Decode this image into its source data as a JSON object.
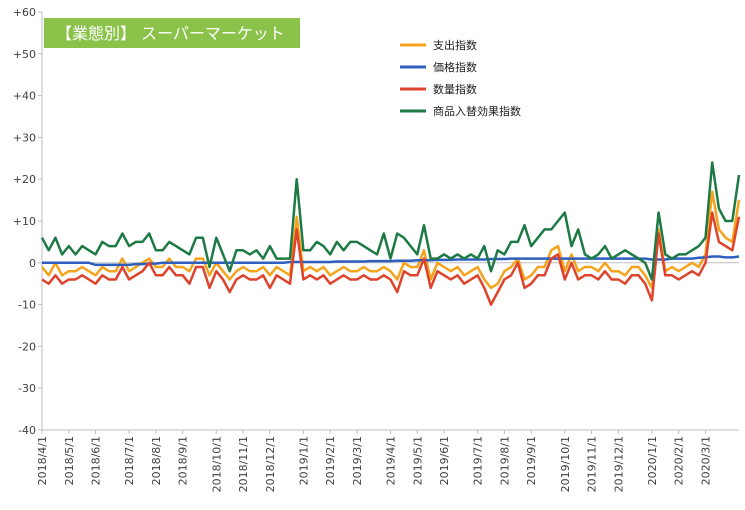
{
  "chart_data": {
    "type": "line",
    "title": "【業態別】 スーパーマーケット",
    "title_bg": "#8bc34a",
    "xlabel": "",
    "ylabel": "",
    "ylim": [
      -40,
      60
    ],
    "yticks": [
      -40,
      -30,
      -20,
      -10,
      0,
      10,
      20,
      30,
      40,
      50,
      60
    ],
    "ytick_labels": [
      "-40",
      "-30",
      "-20",
      "-10",
      "0",
      "+10",
      "+20",
      "+30",
      "+40",
      "+50",
      "+60"
    ],
    "grid": false,
    "legend_position": "top-right",
    "x_tick_labels": [
      "2018/4/1",
      "2018/5/1",
      "2018/6/1",
      "2018/7/1",
      "2018/8/1",
      "2018/9/1",
      "2018/10/1",
      "2018/11/1",
      "2018/12/1",
      "2019/1/1",
      "2019/2/1",
      "2019/3/1",
      "2019/4/1",
      "2019/5/1",
      "2019/6/1",
      "2019/7/1",
      "2019/8/1",
      "2019/9/1",
      "2019/10/1",
      "2019/11/1",
      "2019/12/1",
      "2020/1/1",
      "2020/2/1",
      "2020/3/1"
    ],
    "x_tick_weeks": [
      0,
      4,
      8,
      13,
      17,
      21,
      26,
      30,
      34,
      39,
      43,
      47,
      52,
      56,
      60,
      65,
      69,
      73,
      78,
      82,
      86,
      91,
      95,
      99
    ],
    "x_weeks": 104,
    "series": [
      {
        "name": "支出指数",
        "color": "#f5a31a",
        "values": [
          -1,
          -3,
          0,
          -3,
          -2,
          -2,
          -1,
          -2,
          -3,
          -1,
          -2,
          -2,
          1,
          -2,
          -1,
          0,
          1,
          -1,
          -1,
          1,
          -1,
          -1,
          -2,
          1,
          1,
          -3,
          0,
          -2,
          -4,
          -2,
          -1,
          -2,
          -2,
          -1,
          -3,
          -1,
          -2,
          -3,
          11,
          -2,
          -1,
          -2,
          -1,
          -3,
          -2,
          -1,
          -2,
          -2,
          -1,
          -2,
          -2,
          -1,
          -2,
          -4,
          0,
          -1,
          -1,
          3,
          -4,
          0,
          -1,
          -2,
          -1,
          -3,
          -2,
          -1,
          -4,
          -6,
          -5,
          -2,
          -1,
          1,
          -4,
          -3,
          -1,
          -1,
          3,
          4,
          -2,
          2,
          -2,
          -1,
          -1,
          -2,
          0,
          -2,
          -2,
          -3,
          -1,
          -1,
          -3,
          -6,
          8,
          -2,
          -1,
          -2,
          -1,
          0,
          -1,
          2,
          17,
          8,
          6,
          5,
          15
        ]
      },
      {
        "name": "価格指数",
        "color": "#2e5fbf",
        "values": [
          0,
          0,
          0,
          0,
          0,
          0,
          0,
          0,
          -0.5,
          -0.5,
          -0.5,
          -0.5,
          -0.5,
          -0.5,
          -0.3,
          -0.3,
          -0.2,
          -0.2,
          0,
          0,
          0,
          0,
          0,
          0,
          0,
          0,
          0,
          0,
          0,
          0,
          0,
          0,
          0,
          0,
          0,
          0,
          0,
          0.2,
          0.2,
          0.2,
          0.2,
          0.2,
          0.2,
          0.2,
          0.3,
          0.3,
          0.3,
          0.3,
          0.3,
          0.4,
          0.4,
          0.4,
          0.4,
          0.5,
          0.5,
          0.5,
          0.6,
          0.6,
          0.6,
          0.7,
          0.7,
          0.7,
          0.8,
          0.8,
          0.8,
          0.8,
          0.8,
          0.9,
          0.9,
          0.9,
          1.0,
          1.0,
          1.0,
          1.0,
          1.0,
          1.0,
          1.0,
          1.0,
          1.0,
          1.0,
          1.0,
          1.0,
          1.0,
          1.0,
          1.0,
          1.0,
          1.0,
          1.0,
          1.0,
          1.0,
          1.0,
          0.8,
          0.8,
          0.8,
          1.0,
          1.0,
          1.0,
          1.0,
          1.2,
          1.3,
          1.5,
          1.5,
          1.3,
          1.3,
          1.5
        ]
      },
      {
        "name": "数量指数",
        "color": "#e0432b",
        "values": [
          -4,
          -5,
          -3,
          -5,
          -4,
          -4,
          -3,
          -4,
          -5,
          -3,
          -4,
          -4,
          -1,
          -4,
          -3,
          -2,
          0,
          -3,
          -3,
          -1,
          -3,
          -3,
          -5,
          -1,
          -1,
          -6,
          -2,
          -4,
          -7,
          -4,
          -3,
          -4,
          -4,
          -3,
          -6,
          -3,
          -4,
          -5,
          8,
          -4,
          -3,
          -4,
          -3,
          -5,
          -4,
          -3,
          -4,
          -4,
          -3,
          -4,
          -4,
          -3,
          -4,
          -7,
          -2,
          -3,
          -3,
          1,
          -6,
          -2,
          -3,
          -4,
          -3,
          -5,
          -4,
          -3,
          -6,
          -10,
          -7,
          -4,
          -3,
          0,
          -6,
          -5,
          -3,
          -3,
          1,
          2,
          -4,
          0,
          -4,
          -3,
          -3,
          -4,
          -2,
          -4,
          -4,
          -5,
          -3,
          -3,
          -5,
          -9,
          7,
          -3,
          -3,
          -4,
          -3,
          -2,
          -3,
          0,
          12,
          5,
          4,
          3,
          11
        ]
      },
      {
        "name": "商品入替効果指数",
        "color": "#1e7a45",
        "values": [
          6,
          3,
          6,
          2,
          4,
          2,
          4,
          3,
          2,
          5,
          4,
          4,
          7,
          4,
          5,
          5,
          7,
          3,
          3,
          5,
          4,
          3,
          2,
          6,
          6,
          -1,
          6,
          2,
          -2,
          3,
          3,
          2,
          3,
          1,
          4,
          1,
          1,
          1,
          20,
          3,
          3,
          5,
          4,
          2,
          5,
          3,
          5,
          5,
          4,
          3,
          2,
          7,
          1,
          7,
          6,
          4,
          2,
          9,
          1,
          1,
          2,
          1,
          2,
          1,
          2,
          1,
          4,
          -2,
          3,
          2,
          5,
          5,
          9,
          4,
          6,
          8,
          8,
          10,
          12,
          4,
          8,
          2,
          1,
          2,
          4,
          1,
          2,
          3,
          2,
          1,
          0,
          -4,
          12,
          2,
          1,
          2,
          2,
          3,
          4,
          6,
          24,
          13,
          10,
          10,
          21
        ]
      }
    ]
  }
}
